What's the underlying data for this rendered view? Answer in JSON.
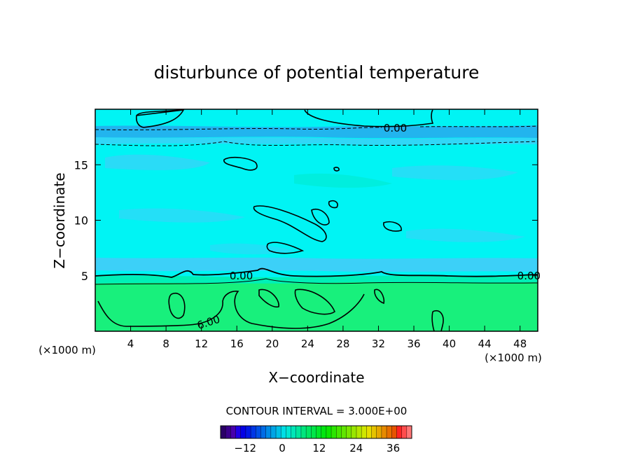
{
  "chart_data": {
    "type": "contour",
    "title": "disturbunce of potential temperature",
    "xlabel": "X−coordinate",
    "ylabel": "Z−coordinate",
    "x_units_left": "(×1000 m)",
    "x_units_right": "(×1000 m)",
    "xlim": [
      0,
      50
    ],
    "ylim": [
      0,
      20
    ],
    "x_ticks": [
      4,
      8,
      12,
      16,
      20,
      24,
      28,
      32,
      36,
      40,
      44,
      48
    ],
    "y_ticks": [
      5,
      10,
      15
    ],
    "contour_interval_text": "CONTOUR INTERVAL = 3.000E+00",
    "contour_labels": [
      {
        "text": "0.00",
        "x": 33.9,
        "z": 18.3
      },
      {
        "text": "0.00",
        "x": 16.5,
        "z": 5.0
      },
      {
        "text": "0.00",
        "x": 49.0,
        "z": 5.0
      },
      {
        "text": "6.00",
        "x": 12.8,
        "z": 0.8
      }
    ],
    "colorbar": {
      "min": -20,
      "max": 42,
      "tick_values": [
        -12,
        0,
        12,
        24,
        36
      ],
      "tick_labels": [
        "−12",
        "0",
        "12",
        "24",
        "36"
      ]
    },
    "field_bands": [
      {
        "zmin": 0,
        "zmax": 4.4,
        "value": 8
      },
      {
        "zmin": 4.4,
        "zmax": 5.3,
        "value": 2
      },
      {
        "zmin": 5.3,
        "zmax": 17.8,
        "value": -1
      },
      {
        "zmin": 17.8,
        "zmax": 18.6,
        "value": -7
      },
      {
        "zmin": 18.6,
        "zmax": 20,
        "value": -1
      }
    ],
    "colors": {
      "background_cyan": "#00f4f4",
      "light_blue": "#3cd0f8",
      "mid_blue": "#22b4ee",
      "green": "#18f07c",
      "line": "#000000"
    }
  }
}
